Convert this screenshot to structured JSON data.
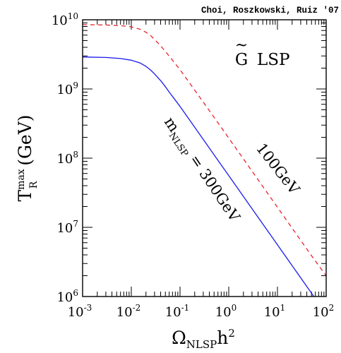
{
  "chart_data": {
    "type": "line",
    "credit": "Choi, Roszkowski, Ruiz '07",
    "title": "",
    "xlabel_main": "Ω",
    "xlabel_sub": "NLSP",
    "xlabel_tail": "h",
    "xlabel_sup": "2",
    "ylabel_main": "T",
    "ylabel_sup": "max",
    "ylabel_sub": "R",
    "ylabel_tail": " (GeV)",
    "x_scale": "log",
    "y_scale": "log",
    "xlim": [
      0.001,
      100
    ],
    "ylim": [
      1000000,
      10000000000
    ],
    "x_ticks": [
      {
        "base": "10",
        "exp": "-3",
        "value": 0.001
      },
      {
        "base": "10",
        "exp": "-2",
        "value": 0.01
      },
      {
        "base": "10",
        "exp": "-1",
        "value": 0.1
      },
      {
        "base": "10",
        "exp": "0",
        "value": 1
      },
      {
        "base": "10",
        "exp": "1",
        "value": 10
      },
      {
        "base": "10",
        "exp": "2",
        "value": 100
      }
    ],
    "y_ticks": [
      {
        "base": "10",
        "exp": "6",
        "value": 1000000
      },
      {
        "base": "10",
        "exp": "7",
        "value": 10000000
      },
      {
        "base": "10",
        "exp": "8",
        "value": 100000000
      },
      {
        "base": "10",
        "exp": "9",
        "value": 1000000000
      },
      {
        "base": "10",
        "exp": "10",
        "value": 10000000000
      }
    ],
    "legend_box": {
      "tilde": "~",
      "letter": "G",
      "text": "LSP"
    },
    "series": [
      {
        "name": "100GeV",
        "style": "dashed",
        "color": "#e8222a",
        "x": [
          0.001,
          0.003,
          0.006,
          0.01,
          0.015,
          0.02,
          0.025,
          0.03,
          0.04,
          0.05,
          0.07,
          0.1,
          0.2,
          0.5,
          1,
          5,
          10,
          50,
          100
        ],
        "y": [
          8500000000,
          8400000000,
          8200000000,
          7900000000,
          7300000000,
          6600000000,
          5900000000,
          5200000000,
          4200000000,
          3500000000,
          2600000000,
          1900000000,
          960000000,
          390000000,
          195000000,
          39000000,
          19500000,
          3900000,
          2000000
        ]
      },
      {
        "name": "m_NLSP = 300GeV",
        "label_main": "m",
        "label_sub": "NLSP",
        "label_tail": " = 300GeV",
        "style": "solid",
        "color": "#1a1aee",
        "x": [
          0.001,
          0.003,
          0.006,
          0.01,
          0.015,
          0.02,
          0.025,
          0.03,
          0.04,
          0.05,
          0.06,
          0.08,
          0.1,
          0.2,
          0.5,
          1,
          5,
          10,
          50,
          70
        ],
        "y": [
          2900000000,
          2850000000,
          2750000000,
          2600000000,
          2380000000,
          2120000000,
          1870000000,
          1650000000,
          1320000000,
          1080000000,
          900000000,
          690000000,
          560000000,
          280000000,
          112000000,
          56000000,
          11200000,
          5600000,
          1120000,
          800000
        ]
      }
    ],
    "label_100": "100GeV"
  }
}
